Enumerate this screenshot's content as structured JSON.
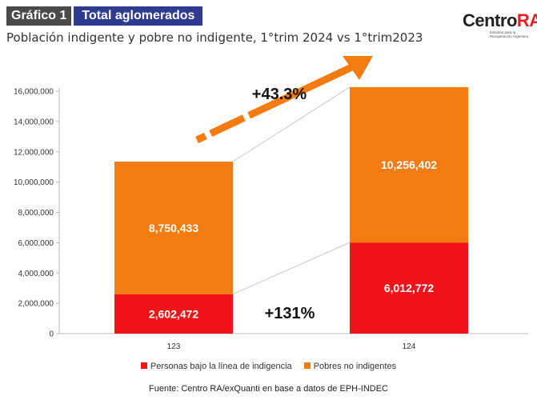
{
  "header": {
    "tag": "Gráfico 1",
    "region": "Total aglomerados",
    "subtitle": "Población indigente y pobre no indigente, 1°trim 2024 vs 1°trim2023"
  },
  "logo": {
    "name_part1": "Centro",
    "name_part2": "RA",
    "tagline": "Estudios para la Recuperación Argentina"
  },
  "source": "Fuente: Centro RA/exQuanti en base a datos de EPH-INDEC",
  "chart_data": {
    "type": "bar",
    "stacked": true,
    "categories": [
      "123",
      "124"
    ],
    "series": [
      {
        "name": "Personas bajo la línea de indigencia",
        "values": [
          2602472,
          6012772
        ],
        "labels": [
          "2,602,472",
          "6,012,772"
        ],
        "color": "#f01418"
      },
      {
        "name": "Pobres no indigentes",
        "values": [
          8750433,
          10256402
        ],
        "labels": [
          "8,750,433",
          "10,256,402"
        ],
        "color": "#f47b0f"
      }
    ],
    "ylim": [
      0,
      16000000
    ],
    "yticks": [
      0,
      2000000,
      4000000,
      6000000,
      8000000,
      10000000,
      12000000,
      14000000,
      16000000
    ],
    "ytick_labels": [
      "0",
      "2,000,000",
      "4,000,000",
      "6,000,000",
      "8,000,000",
      "10,000,000",
      "12,000,000",
      "14,000,000",
      "16,000,000"
    ],
    "annotations": {
      "total_change": "+43.3%",
      "indigence_change": "+131%"
    },
    "grid": false,
    "legend_position": "bottom",
    "arrow_color": "#f47b0f"
  }
}
